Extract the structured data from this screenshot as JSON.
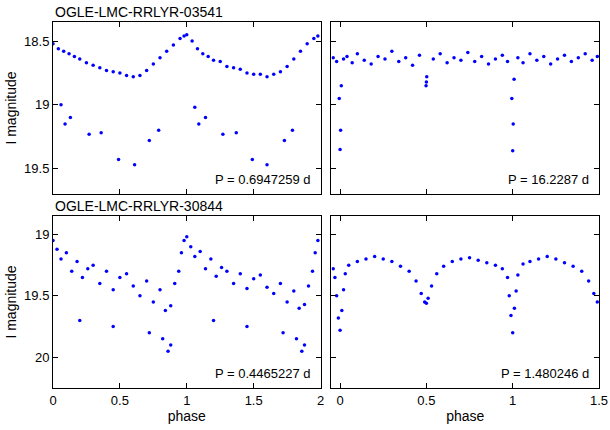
{
  "chart_data": [
    {
      "type": "scatter",
      "title": "OGLE-LMC-RRLYR-03541",
      "ylabel": "I magnitude",
      "annotation": "P = 0.6947259 d",
      "color": "#0000ff",
      "marker": "dot",
      "xlim": [
        0,
        2
      ],
      "xticks": [
        0,
        0.5,
        1,
        1.5,
        2
      ],
      "ylim": [
        19.7,
        18.35
      ],
      "yticks": [
        18.5,
        19,
        19.5
      ],
      "tick_labels": "y",
      "x": [
        0.0,
        0.04,
        0.08,
        0.12,
        0.16,
        0.2,
        0.25,
        0.3,
        0.35,
        0.4,
        0.45,
        0.5,
        0.55,
        0.6,
        0.65,
        0.7,
        0.75,
        0.8,
        0.85,
        0.9,
        0.95,
        0.98,
        1.0,
        1.04,
        1.08,
        1.12,
        1.16,
        1.2,
        1.25,
        1.3,
        1.35,
        1.4,
        1.45,
        1.5,
        1.55,
        1.6,
        1.65,
        1.7,
        1.75,
        1.8,
        1.85,
        1.9,
        1.95,
        1.98,
        0.06,
        0.09,
        0.13,
        0.27,
        0.36,
        0.49,
        0.61,
        0.72,
        0.79,
        1.06,
        1.09,
        1.14,
        1.27,
        1.37,
        1.49,
        1.6,
        1.73,
        1.79
      ],
      "values": [
        18.52,
        18.56,
        18.58,
        18.6,
        18.62,
        18.64,
        18.67,
        18.69,
        18.71,
        18.73,
        18.74,
        18.75,
        18.77,
        18.78,
        18.77,
        18.73,
        18.68,
        18.63,
        18.58,
        18.53,
        18.48,
        18.46,
        18.45,
        18.5,
        18.56,
        18.6,
        18.62,
        18.65,
        18.66,
        18.7,
        18.71,
        18.72,
        18.75,
        18.76,
        18.76,
        18.78,
        18.76,
        18.74,
        18.7,
        18.64,
        18.58,
        18.52,
        18.48,
        18.46,
        19.0,
        19.15,
        19.1,
        19.23,
        19.22,
        19.43,
        19.47,
        19.28,
        19.2,
        19.02,
        19.15,
        19.1,
        19.23,
        19.22,
        19.43,
        19.47,
        19.28,
        19.2
      ]
    },
    {
      "type": "scatter",
      "annotation": "P = 16.2287 d",
      "color": "#0000ff",
      "marker": "dot",
      "xlim": [
        -0.05,
        1.5
      ],
      "xticks": [
        0,
        0.5,
        1,
        1.5
      ],
      "ylim": [
        19.7,
        18.35
      ],
      "yticks": [
        18.5,
        19,
        19.5
      ],
      "tick_labels": false,
      "x": [
        -0.04,
        -0.02,
        0.02,
        0.04,
        0.07,
        0.1,
        0.14,
        0.18,
        0.22,
        0.26,
        0.3,
        0.34,
        0.38,
        0.42,
        0.46,
        0.5,
        0.54,
        0.58,
        0.62,
        0.66,
        0.7,
        0.74,
        0.78,
        0.82,
        0.86,
        0.9,
        0.94,
        0.97,
        1.03,
        1.06,
        1.1,
        1.14,
        1.18,
        1.22,
        1.26,
        1.3,
        1.34,
        1.38,
        1.42,
        1.46,
        1.49,
        -0.005,
        0,
        0.003,
        0.007,
        0.995,
        1.0,
        1.003,
        1.008,
        0.498,
        0.502
      ],
      "values": [
        18.63,
        18.66,
        18.64,
        18.62,
        18.67,
        18.6,
        18.65,
        18.68,
        18.62,
        18.64,
        18.58,
        18.66,
        18.63,
        18.69,
        18.61,
        18.82,
        18.64,
        18.6,
        18.67,
        18.63,
        18.65,
        18.59,
        18.66,
        18.62,
        18.68,
        18.64,
        18.61,
        18.66,
        18.63,
        18.67,
        18.6,
        18.65,
        18.62,
        18.68,
        18.64,
        18.61,
        18.66,
        18.63,
        18.6,
        18.65,
        18.62,
        18.95,
        19.35,
        19.2,
        18.85,
        18.95,
        19.36,
        19.15,
        18.8,
        18.85,
        18.78
      ]
    },
    {
      "type": "scatter",
      "title": "OGLE-LMC-RRLYR-30844",
      "ylabel": "I magnitude",
      "xlabel": "phase",
      "annotation": "P = 0.4465227 d",
      "color": "#0000ff",
      "marker": "dot",
      "xlim": [
        0,
        2
      ],
      "xticks": [
        0,
        0.5,
        1,
        1.5,
        2
      ],
      "ylim": [
        20.25,
        18.85
      ],
      "yticks": [
        19,
        19.5,
        20
      ],
      "tick_labels": true,
      "x": [
        0.0,
        0.03,
        0.06,
        0.1,
        0.14,
        0.18,
        0.22,
        0.26,
        0.3,
        0.35,
        0.4,
        0.45,
        0.5,
        0.55,
        0.6,
        0.65,
        0.7,
        0.75,
        0.8,
        0.84,
        0.88,
        0.91,
        0.94,
        0.96,
        0.98,
        1.0,
        1.03,
        1.06,
        1.1,
        1.14,
        1.18,
        1.22,
        1.26,
        1.3,
        1.35,
        1.4,
        1.45,
        1.5,
        1.55,
        1.6,
        1.65,
        1.7,
        1.75,
        1.8,
        1.84,
        1.88,
        1.91,
        1.94,
        1.96,
        1.98,
        0.2,
        0.45,
        0.72,
        0.82,
        0.86,
        0.88,
        1.2,
        1.45,
        1.72,
        1.82,
        1.86,
        1.88
      ],
      "values": [
        19.05,
        19.12,
        19.2,
        19.15,
        19.3,
        19.22,
        19.35,
        19.28,
        19.25,
        19.4,
        19.3,
        19.45,
        19.35,
        19.32,
        19.42,
        19.5,
        19.38,
        19.55,
        19.45,
        19.62,
        19.58,
        19.4,
        19.3,
        19.15,
        19.05,
        19.02,
        19.1,
        19.18,
        19.14,
        19.28,
        19.2,
        19.34,
        19.27,
        19.3,
        19.4,
        19.32,
        19.44,
        19.36,
        19.33,
        19.43,
        19.48,
        19.4,
        19.55,
        19.46,
        19.6,
        19.57,
        19.42,
        19.3,
        19.15,
        19.05,
        19.7,
        19.75,
        19.8,
        19.85,
        19.95,
        19.9,
        19.7,
        19.75,
        19.8,
        19.85,
        19.95,
        19.9
      ]
    },
    {
      "type": "scatter",
      "xlabel": "phase",
      "annotation": "P = 1.480246 d",
      "color": "#0000ff",
      "marker": "dot",
      "xlim": [
        -0.05,
        1.5
      ],
      "xticks": [
        0,
        0.5,
        1,
        1.5
      ],
      "ylim": [
        20.25,
        18.85
      ],
      "yticks": [
        19,
        19.5,
        20
      ],
      "tick_labels": "x",
      "x": [
        -0.04,
        -0.03,
        -0.02,
        -0.01,
        0,
        0.01,
        0.02,
        0.03,
        0.05,
        0.1,
        0.15,
        0.2,
        0.25,
        0.3,
        0.35,
        0.4,
        0.44,
        0.47,
        0.49,
        0.5,
        0.51,
        0.53,
        0.56,
        0.6,
        0.65,
        0.7,
        0.75,
        0.8,
        0.85,
        0.9,
        0.94,
        0.97,
        0.98,
        0.99,
        1.0,
        1.01,
        1.02,
        1.03,
        1.06,
        1.1,
        1.15,
        1.2,
        1.25,
        1.3,
        1.35,
        1.4,
        1.44,
        1.47,
        1.49
      ],
      "values": [
        19.28,
        19.35,
        19.5,
        19.68,
        19.78,
        19.62,
        19.45,
        19.32,
        19.25,
        19.22,
        19.2,
        19.18,
        19.2,
        19.22,
        19.26,
        19.3,
        19.38,
        19.48,
        19.55,
        19.56,
        19.52,
        19.42,
        19.32,
        19.26,
        19.22,
        19.2,
        19.19,
        19.21,
        19.23,
        19.25,
        19.28,
        19.35,
        19.5,
        19.66,
        19.8,
        19.6,
        19.46,
        19.33,
        19.24,
        19.22,
        19.2,
        19.18,
        19.2,
        19.23,
        19.26,
        19.3,
        19.38,
        19.48,
        19.55
      ]
    }
  ]
}
